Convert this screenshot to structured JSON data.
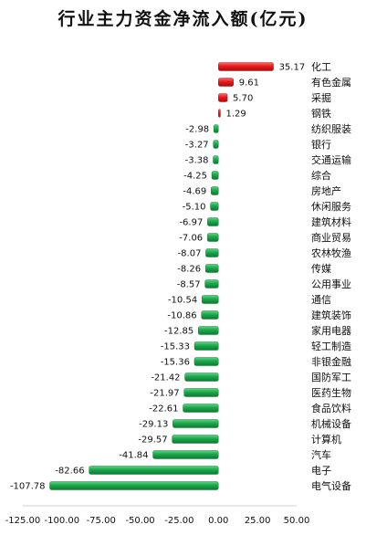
{
  "chart_data": {
    "type": "bar",
    "orientation": "horizontal",
    "title": "行业主力资金净流入额(亿元)",
    "categories": [
      "化工",
      "有色金属",
      "采掘",
      "钢铁",
      "纺织服装",
      "银行",
      "交通运输",
      "综合",
      "房地产",
      "休闲服务",
      "建筑材料",
      "商业贸易",
      "农林牧渔",
      "传媒",
      "公用事业",
      "通信",
      "建筑装饰",
      "家用电器",
      "轻工制造",
      "非银金融",
      "国防军工",
      "医药生物",
      "食品饮料",
      "机械设备",
      "计算机",
      "汽车",
      "电子",
      "电气设备"
    ],
    "values": [
      35.17,
      9.61,
      5.7,
      1.29,
      -2.98,
      -3.27,
      -3.38,
      -4.25,
      -4.69,
      -5.1,
      -6.97,
      -7.06,
      -8.07,
      -8.26,
      -8.57,
      -10.54,
      -10.86,
      -12.85,
      -15.33,
      -15.36,
      -21.42,
      -21.97,
      -22.61,
      -29.13,
      -29.57,
      -41.84,
      -82.66,
      -107.78
    ],
    "value_labels": [
      "35.17",
      "9.61",
      "5.70",
      "1.29",
      "-2.98",
      "-3.27",
      "-3.38",
      "-4.25",
      "-4.69",
      "-5.10",
      "-6.97",
      "-7.06",
      "-8.07",
      "-8.26",
      "-8.57",
      "-10.54",
      "-10.86",
      "-12.85",
      "-15.33",
      "-15.36",
      "-21.42",
      "-21.97",
      "-22.61",
      "-29.13",
      "-29.57",
      "-41.84",
      "-82.66",
      "-107.78"
    ],
    "xlim": [
      -125,
      50
    ],
    "x_ticks": [
      -125,
      -100,
      -75,
      -50,
      -25,
      0,
      25,
      50
    ],
    "x_tick_labels": [
      "-125.00",
      "-100.00",
      "-75.00",
      "-50.00",
      "-25.00",
      "0.00",
      "25.00",
      "50.00"
    ],
    "grid": false,
    "legend": "none",
    "colors": {
      "positive": "#e8191b",
      "negative": "#1aa84a"
    }
  }
}
